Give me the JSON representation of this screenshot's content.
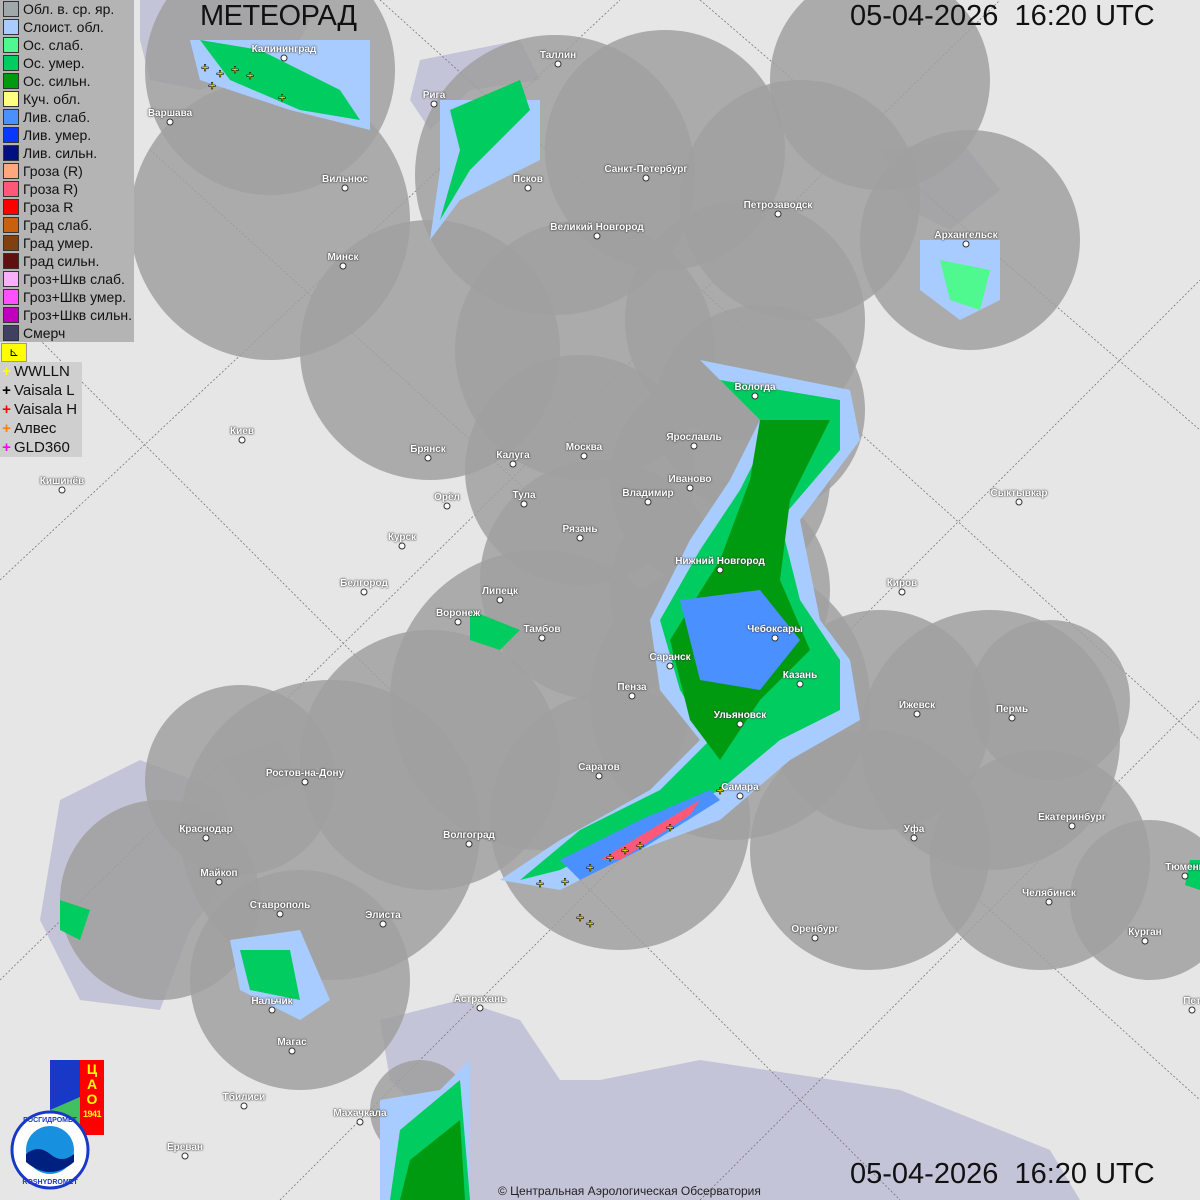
{
  "header": {
    "title": "МЕТЕОРАД",
    "timestamp_top": "05-04-2026  16:20 UTC",
    "timestamp_bottom": "05-04-2026  16:20 UTC"
  },
  "legend": [
    {
      "label": "Обл. в. ср. яр.",
      "color": "#a0a8ac"
    },
    {
      "label": "Слоист. обл.",
      "color": "#a8ccff"
    },
    {
      "label": "Ос. слаб.",
      "color": "#50f890"
    },
    {
      "label": "Ос. умер.",
      "color": "#00cc60"
    },
    {
      "label": "Ос. сильн.",
      "color": "#009a10"
    },
    {
      "label": "Куч. обл.",
      "color": "#ffff80"
    },
    {
      "label": "Лив. слаб.",
      "color": "#4a90ff"
    },
    {
      "label": "Лив. умер.",
      "color": "#0838ff"
    },
    {
      "label": "Лив. сильн.",
      "color": "#001080"
    },
    {
      "label": "Гроза (R)",
      "color": "#ffa880"
    },
    {
      "label": "Гроза R)",
      "color": "#ff5878"
    },
    {
      "label": "Гроза R",
      "color": "#ff0000"
    },
    {
      "label": "Град слаб.",
      "color": "#c86010"
    },
    {
      "label": "Град умер.",
      "color": "#804010"
    },
    {
      "label": "Град сильн.",
      "color": "#601010"
    },
    {
      "label": "Гроз+Шкв слаб.",
      "color": "#f8b0f8"
    },
    {
      "label": "Гроз+Шкв умер.",
      "color": "#ff50ff"
    },
    {
      "label": "Гроз+Шкв сильн.",
      "color": "#c000c0"
    },
    {
      "label": "Смерч",
      "color": "#404060"
    }
  ],
  "flag_button": {
    "icon": "flag-icon",
    "label": "⊾"
  },
  "lightning_legend": [
    {
      "label": "WWLLN",
      "color": "#ffff00"
    },
    {
      "label": "Vaisala L",
      "color": "#000000"
    },
    {
      "label": "Vaisala H",
      "color": "#ff0000"
    },
    {
      "label": "Алвес",
      "color": "#ff8000"
    },
    {
      "label": "GLD360",
      "color": "#ff00ff"
    }
  ],
  "cities": [
    {
      "name": "Калининград",
      "lon_lat_hint": [
        284,
        58
      ]
    },
    {
      "name": "Таллин",
      "lon_lat_hint": [
        558,
        64
      ]
    },
    {
      "name": "Рига",
      "lon_lat_hint": [
        434,
        104
      ]
    },
    {
      "name": "Варшава",
      "lon_lat_hint": [
        170,
        122
      ]
    },
    {
      "name": "Вильнюс",
      "lon_lat_hint": [
        345,
        188
      ]
    },
    {
      "name": "Псков",
      "lon_lat_hint": [
        528,
        188
      ]
    },
    {
      "name": "Санкт-Петербург",
      "lon_lat_hint": [
        646,
        178
      ]
    },
    {
      "name": "Петрозаводск",
      "lon_lat_hint": [
        778,
        214
      ]
    },
    {
      "name": "Архангельск",
      "lon_lat_hint": [
        966,
        244
      ]
    },
    {
      "name": "Великий Новгород",
      "lon_lat_hint": [
        597,
        236
      ]
    },
    {
      "name": "Минск",
      "lon_lat_hint": [
        343,
        266
      ]
    },
    {
      "name": "Вологда",
      "lon_lat_hint": [
        755,
        396
      ]
    },
    {
      "name": "Киев",
      "lon_lat_hint": [
        242,
        440
      ]
    },
    {
      "name": "Брянск",
      "lon_lat_hint": [
        428,
        458
      ]
    },
    {
      "name": "Калуга",
      "lon_lat_hint": [
        513,
        464
      ]
    },
    {
      "name": "Москва",
      "lon_lat_hint": [
        584,
        456
      ]
    },
    {
      "name": "Ярославль",
      "lon_lat_hint": [
        694,
        446
      ]
    },
    {
      "name": "Иваново",
      "lon_lat_hint": [
        690,
        488
      ]
    },
    {
      "name": "Кишинёв",
      "lon_lat_hint": [
        62,
        490
      ]
    },
    {
      "name": "Тула",
      "lon_lat_hint": [
        524,
        504
      ]
    },
    {
      "name": "Орёл",
      "lon_lat_hint": [
        447,
        506
      ]
    },
    {
      "name": "Владимир",
      "lon_lat_hint": [
        648,
        502
      ]
    },
    {
      "name": "Сыктывкар",
      "lon_lat_hint": [
        1019,
        502
      ]
    },
    {
      "name": "Рязань",
      "lon_lat_hint": [
        580,
        538
      ]
    },
    {
      "name": "Курск",
      "lon_lat_hint": [
        402,
        546
      ]
    },
    {
      "name": "Нижний Новгород",
      "lon_lat_hint": [
        720,
        570
      ]
    },
    {
      "name": "Киров",
      "lon_lat_hint": [
        902,
        592
      ]
    },
    {
      "name": "Белгород",
      "lon_lat_hint": [
        364,
        592
      ]
    },
    {
      "name": "Липецк",
      "lon_lat_hint": [
        500,
        600
      ]
    },
    {
      "name": "Воронеж",
      "lon_lat_hint": [
        458,
        622
      ]
    },
    {
      "name": "Тамбов",
      "lon_lat_hint": [
        542,
        638
      ]
    },
    {
      "name": "Чебоксары",
      "lon_lat_hint": [
        775,
        638
      ]
    },
    {
      "name": "Саранск",
      "lon_lat_hint": [
        670,
        666
      ]
    },
    {
      "name": "Казань",
      "lon_lat_hint": [
        800,
        684
      ]
    },
    {
      "name": "Пенза",
      "lon_lat_hint": [
        632,
        696
      ]
    },
    {
      "name": "Ижевск",
      "lon_lat_hint": [
        917,
        714
      ]
    },
    {
      "name": "Пермь",
      "lon_lat_hint": [
        1012,
        718
      ]
    },
    {
      "name": "Ульяновск",
      "lon_lat_hint": [
        740,
        724
      ]
    },
    {
      "name": "Ростов-на-Дону",
      "lon_lat_hint": [
        305,
        782
      ]
    },
    {
      "name": "Саратов",
      "lon_lat_hint": [
        599,
        776
      ]
    },
    {
      "name": "Самара",
      "lon_lat_hint": [
        740,
        796
      ]
    },
    {
      "name": "Екатеринбург",
      "lon_lat_hint": [
        1072,
        826
      ]
    },
    {
      "name": "Краснодар",
      "lon_lat_hint": [
        206,
        838
      ]
    },
    {
      "name": "Уфа",
      "lon_lat_hint": [
        914,
        838
      ]
    },
    {
      "name": "Волгоград",
      "lon_lat_hint": [
        469,
        844
      ]
    },
    {
      "name": "Майкоп",
      "lon_lat_hint": [
        219,
        882
      ]
    },
    {
      "name": "Тюмень",
      "lon_lat_hint": [
        1185,
        876
      ]
    },
    {
      "name": "Челябинск",
      "lon_lat_hint": [
        1049,
        902
      ]
    },
    {
      "name": "Ставрополь",
      "lon_lat_hint": [
        280,
        914
      ]
    },
    {
      "name": "Элиста",
      "lon_lat_hint": [
        383,
        924
      ]
    },
    {
      "name": "Оренбург",
      "lon_lat_hint": [
        815,
        938
      ]
    },
    {
      "name": "Курган",
      "lon_lat_hint": [
        1145,
        941
      ]
    },
    {
      "name": "Астрахань",
      "lon_lat_hint": [
        480,
        1008
      ]
    },
    {
      "name": "Нальчик",
      "lon_lat_hint": [
        272,
        1010
      ]
    },
    {
      "name": "Магас",
      "lon_lat_hint": [
        292,
        1051
      ]
    },
    {
      "name": "Тбилиси",
      "lon_lat_hint": [
        244,
        1106
      ]
    },
    {
      "name": "Махачкала",
      "lon_lat_hint": [
        360,
        1122
      ]
    },
    {
      "name": "Ереван",
      "lon_lat_hint": [
        185,
        1156
      ]
    },
    {
      "name": "Пет",
      "lon_lat_hint": [
        1192,
        1010
      ]
    }
  ],
  "footer": {
    "copyright": "© Центральная Аэрологическая Обсерватория"
  },
  "logos": {
    "cao": "ЦАО 1941",
    "rosgidromet_ru": "РОСГИДРОМЕТ",
    "rosgidromet_en": "ROSHYDROMET"
  }
}
